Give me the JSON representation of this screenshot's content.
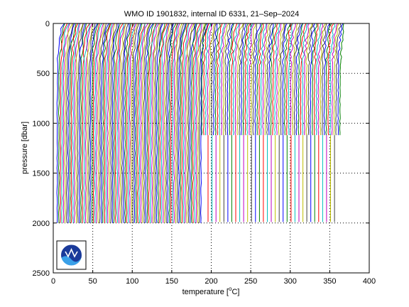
{
  "chart_data": {
    "type": "line",
    "title": "WMO ID 1901832, internal ID 6331, 21–Sep–2024",
    "xlabel_prefix": "temperature [",
    "xlabel_sup": "o",
    "xlabel_suffix": "C]",
    "ylabel": "pressure [dbar]",
    "xlim": [
      0,
      400
    ],
    "ylim": [
      0,
      2500
    ],
    "y_reversed": true,
    "grid": true,
    "xticks": [
      0,
      50,
      100,
      150,
      200,
      250,
      300,
      350,
      400
    ],
    "yticks": [
      0,
      500,
      1000,
      1500,
      2000,
      2500
    ],
    "logo": "noaa-logo",
    "series_colors": [
      "#0000ff",
      "#008000",
      "#ff0000",
      "#00bfbf",
      "#bf00bf",
      "#bfbf00",
      "#404040"
    ],
    "groups": [
      {
        "x_start": 5,
        "x_end": 188,
        "spacing": 2,
        "max_pressure": 2000,
        "surface_offset": 8
      },
      {
        "x_start": 188,
        "x_end": 365,
        "spacing": 2.5,
        "max_pressure": 1120,
        "surface_offset": 6
      },
      {
        "x_start": 196,
        "x_end": 360,
        "spacing": 5,
        "max_pressure": 1990,
        "surface_offset": 0,
        "start_pressure": 1120
      }
    ]
  }
}
